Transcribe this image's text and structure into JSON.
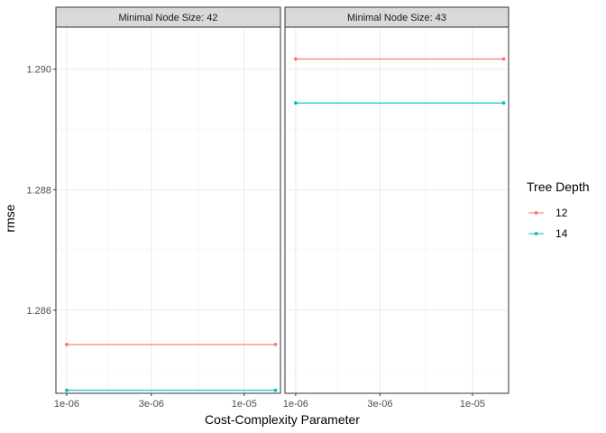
{
  "chart_data": {
    "type": "line",
    "xlabel": "Cost-Complexity Parameter",
    "ylabel": "rmse",
    "x_scale": "log10",
    "x_ticks": [
      {
        "value": 1e-06,
        "label": "1e-06"
      },
      {
        "value": 3e-06,
        "label": "3e-06"
      },
      {
        "value": 1e-05,
        "label": "1e-05"
      }
    ],
    "y_ticks": [
      {
        "value": 1.286,
        "label": "1.286"
      },
      {
        "value": 1.288,
        "label": "1.288"
      },
      {
        "value": 1.29,
        "label": "1.290"
      }
    ],
    "xlim": [
      8.7e-07,
      1.6e-05
    ],
    "ylim": [
      1.28462,
      1.2907
    ],
    "grid": true,
    "legend": {
      "title": "Tree Depth",
      "position": "right",
      "entries": [
        {
          "label": "12",
          "color": "#F8766D"
        },
        {
          "label": "14",
          "color": "#00BFC4"
        }
      ]
    },
    "panels": [
      {
        "title": "Minimal Node Size: 42",
        "series": [
          {
            "name": "12",
            "color": "#F8766D",
            "x": [
              1e-06,
              1.5e-05
            ],
            "y": [
              1.28543,
              1.28543
            ]
          },
          {
            "name": "14",
            "color": "#00BFC4",
            "x": [
              1e-06,
              1.5e-05
            ],
            "y": [
              1.28467,
              1.28467
            ]
          }
        ]
      },
      {
        "title": "Minimal Node Size: 43",
        "series": [
          {
            "name": "12",
            "color": "#F8766D",
            "x": [
              1e-06,
              1.5e-05
            ],
            "y": [
              1.29017,
              1.29017
            ]
          },
          {
            "name": "14",
            "color": "#00BFC4",
            "x": [
              1e-06,
              1.5e-05
            ],
            "y": [
              1.28944,
              1.28944
            ]
          }
        ]
      }
    ]
  }
}
